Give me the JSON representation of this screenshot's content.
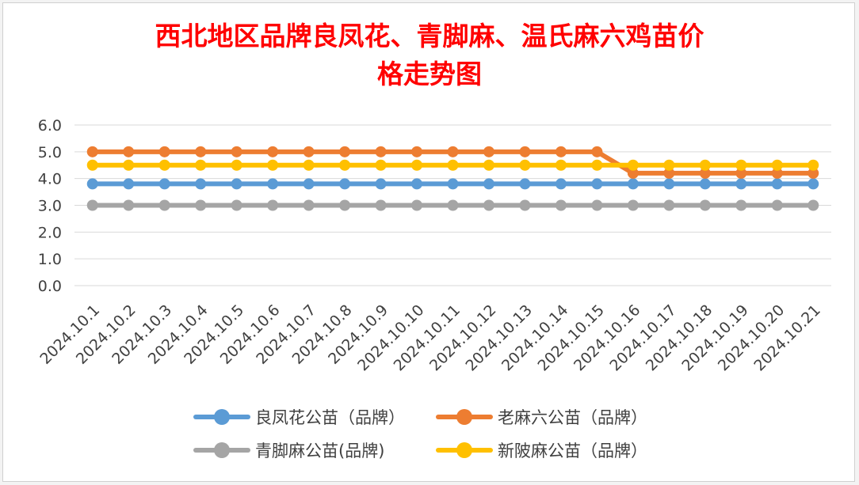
{
  "chart_data": {
    "type": "line",
    "title_line1": "西北地区品牌良凤花、青脚麻、温氏麻六鸡苗价",
    "title_line2": "格走势图",
    "categories": [
      "2024.10.1",
      "2024.10.2",
      "2024.10.3",
      "2024.10.4",
      "2024.10.5",
      "2024.10.6",
      "2024.10.7",
      "2024.10.8",
      "2024.10.9",
      "2024.10.10",
      "2024.10.11",
      "2024.10.12",
      "2024.10.13",
      "2024.10.14",
      "2024.10.15",
      "2024.10.16",
      "2024.10.17",
      "2024.10.18",
      "2024.10.19",
      "2024.10.20",
      "2024.10.21"
    ],
    "y_ticks": [
      "0.0",
      "1.0",
      "2.0",
      "3.0",
      "4.0",
      "5.0",
      "6.0"
    ],
    "ylim": [
      0,
      6
    ],
    "grid": true,
    "legend_position": "bottom",
    "series": [
      {
        "name": "良凤花公苗（品牌）",
        "color": "#5b9bd5",
        "values": [
          3.8,
          3.8,
          3.8,
          3.8,
          3.8,
          3.8,
          3.8,
          3.8,
          3.8,
          3.8,
          3.8,
          3.8,
          3.8,
          3.8,
          3.8,
          3.8,
          3.8,
          3.8,
          3.8,
          3.8,
          3.8
        ]
      },
      {
        "name": "老麻六公苗（品牌）",
        "color": "#ed7d31",
        "values": [
          5.0,
          5.0,
          5.0,
          5.0,
          5.0,
          5.0,
          5.0,
          5.0,
          5.0,
          5.0,
          5.0,
          5.0,
          5.0,
          5.0,
          5.0,
          4.2,
          4.2,
          4.2,
          4.2,
          4.2,
          4.2
        ]
      },
      {
        "name": "青脚麻公苗(品牌)",
        "color": "#a5a5a5",
        "values": [
          3.0,
          3.0,
          3.0,
          3.0,
          3.0,
          3.0,
          3.0,
          3.0,
          3.0,
          3.0,
          3.0,
          3.0,
          3.0,
          3.0,
          3.0,
          3.0,
          3.0,
          3.0,
          3.0,
          3.0,
          3.0
        ]
      },
      {
        "name": "新陂麻公苗（品牌）",
        "color": "#ffc000",
        "values": [
          4.5,
          4.5,
          4.5,
          4.5,
          4.5,
          4.5,
          4.5,
          4.5,
          4.5,
          4.5,
          4.5,
          4.5,
          4.5,
          4.5,
          4.5,
          4.5,
          4.5,
          4.5,
          4.5,
          4.5,
          4.5
        ]
      }
    ]
  }
}
